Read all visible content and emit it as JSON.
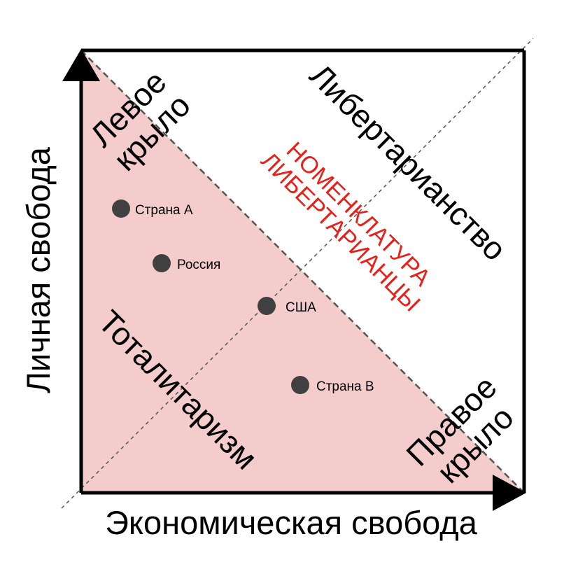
{
  "axes": {
    "x_label": "Экономическая свобода",
    "y_label": "Личная свобода"
  },
  "regions": {
    "left_wing_line1": "Левое",
    "left_wing_line2": "крыло",
    "right_wing_line1": "Правое",
    "right_wing_line2": "крыло",
    "libertarianism": "Либертарианство",
    "totalitarianism": "Тоталитаризм"
  },
  "annotation": {
    "line1": "НОМЕНКЛАТУРА",
    "line2": "ЛИБЕРТАРИАНЦЫ"
  },
  "points": [
    {
      "label": "Страна А"
    },
    {
      "label": "Россия"
    },
    {
      "label": "США"
    },
    {
      "label": "Страна B"
    }
  ],
  "colors": {
    "shaded_region": "#f4cccc",
    "annotation": "#e8201a",
    "point": "#404040",
    "frame": "#000000",
    "dashed": "#555555"
  }
}
